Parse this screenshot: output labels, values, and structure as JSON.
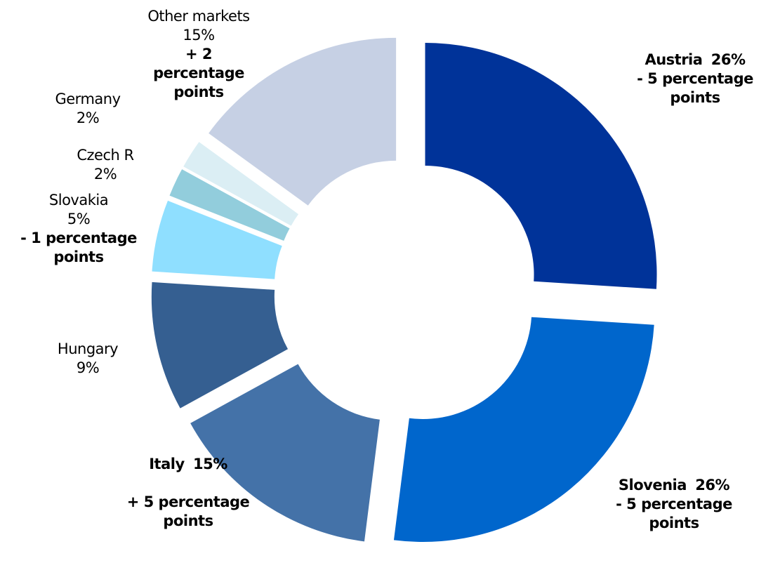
{
  "chart_data": {
    "type": "pie",
    "donut": true,
    "categories": [
      "Austria",
      "Slovenia",
      "Italy",
      "Hungary",
      "Slovakia",
      "Czech R",
      "Germany",
      "Other markets"
    ],
    "values": [
      26,
      26,
      15,
      9,
      5,
      2,
      2,
      15
    ],
    "value_labels": [
      "26%",
      "26%",
      "15%",
      "9%",
      "5%",
      "2%",
      "2%",
      "15%"
    ],
    "colors": [
      "#003399",
      "#0066cc",
      "#4472a8",
      "#355f91",
      "#8fdfff",
      "#92cddc",
      "#dbeef4",
      "#c6d0e4"
    ],
    "annotations": [
      "- 5 percentage points",
      "- 5 percentage points",
      "+ 5 percentage points",
      null,
      "- 1 percentage points",
      null,
      null,
      "+ 2 percentage points"
    ]
  }
}
